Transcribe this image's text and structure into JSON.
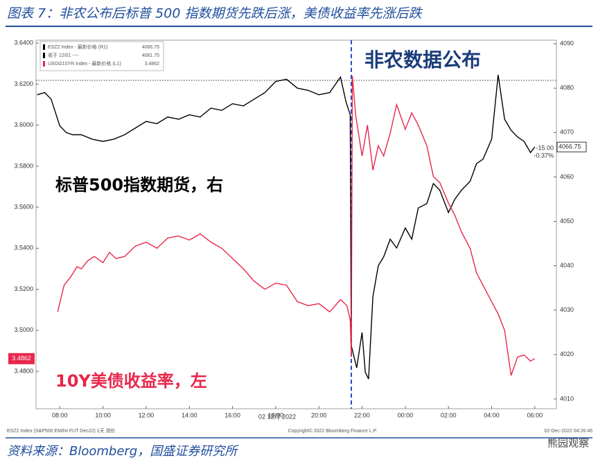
{
  "chart_data": {
    "type": "line",
    "title": "图表 7：非农公布后标普 500 指数期货先跌后涨，美债收益率先涨后跌",
    "source": "资料来源：Bloomberg，国盛证券研究所",
    "watermark": "熊园观察",
    "date_label": "02 12月 2022",
    "footer_left": "ESZ2 Index (S&P500 EMINI FUT Dec22) 1天 测价",
    "footer_center": "Copyright© 2022 Bloomberg Finance L.P.",
    "footer_right": "02-Dec-2022 04:26:46",
    "event": {
      "label": "非农数据公布",
      "x": 21.5
    },
    "prior_close": {
      "label": "收于 12/01 ----",
      "value": 4081.75
    },
    "change": {
      "value": -15,
      "label": "-15.00"
    },
    "change_pct": {
      "value": -0.37,
      "label": "-0.37%"
    },
    "xlim": [
      6.9,
      31.0
    ],
    "xticks": [
      {
        "value": 8,
        "label": "08:00"
      },
      {
        "value": 10,
        "label": "10:00"
      },
      {
        "value": 12,
        "label": "12:00"
      },
      {
        "value": 14,
        "label": "14:00"
      },
      {
        "value": 16,
        "label": "16:00"
      },
      {
        "value": 18,
        "label": "18:00"
      },
      {
        "value": 20,
        "label": "20:00"
      },
      {
        "value": 22,
        "label": "22:00"
      },
      {
        "value": 24,
        "label": "00:00"
      },
      {
        "value": 26,
        "label": "02:00"
      },
      {
        "value": 28,
        "label": "04:00"
      },
      {
        "value": 30,
        "label": "06:00"
      }
    ],
    "ylim": [
      3.4618,
      3.6414
    ],
    "yticks": [
      {
        "value": 3.48,
        "label": "3.4800"
      },
      {
        "value": 3.5,
        "label": "3.5000"
      },
      {
        "value": 3.52,
        "label": "3.5200"
      },
      {
        "value": 3.54,
        "label": "3.5400"
      },
      {
        "value": 3.56,
        "label": "3.5600"
      },
      {
        "value": 3.58,
        "label": "3.5800"
      },
      {
        "value": 3.6,
        "label": "3.6000"
      },
      {
        "value": 3.62,
        "label": "3.6200"
      },
      {
        "value": 3.64,
        "label": "3.6400"
      }
    ],
    "y2lim": [
      4007.8,
      4090.8
    ],
    "y2ticks": [
      4010,
      4020,
      4030,
      4040,
      4050,
      4060,
      4070,
      4080,
      4090
    ],
    "series": [
      {
        "name": "ESZ2 Index - 最新价格 (R1)",
        "callout": "标普500指数期货，右",
        "color": "#000000",
        "axis": "y2",
        "x": [
          6.95,
          7.3,
          7.6,
          8.0,
          8.3,
          8.6,
          9.0,
          9.5,
          10.0,
          10.5,
          11.0,
          11.5,
          12.0,
          12.5,
          13.0,
          13.5,
          14.0,
          14.5,
          15.0,
          15.5,
          16.0,
          16.5,
          17.0,
          17.5,
          18.0,
          18.5,
          19.0,
          19.5,
          20.0,
          20.5,
          21.0,
          21.25,
          21.45,
          21.5,
          21.6,
          21.75,
          22.0,
          22.15,
          22.3,
          22.5,
          22.75,
          23.0,
          23.3,
          23.6,
          24.0,
          24.3,
          24.6,
          25.0,
          25.3,
          25.6,
          26.0,
          26.3,
          26.6,
          27.0,
          27.3,
          27.6,
          28.0,
          28.3,
          28.6,
          28.9,
          29.2,
          29.5,
          29.8,
          30.0
        ],
        "values": [
          4078.5,
          4079.0,
          4077.5,
          4071.5,
          4070.0,
          4069.5,
          4069.5,
          4068.5,
          4068.0,
          4068.5,
          4069.5,
          4071.0,
          4072.5,
          4072.0,
          4073.5,
          4073.0,
          4074.0,
          4073.5,
          4075.5,
          4075.0,
          4076.5,
          4076.0,
          4077.5,
          4079.0,
          4081.5,
          4082.0,
          4080.0,
          4079.5,
          4078.5,
          4079.0,
          4082.5,
          4077.0,
          4074.0,
          4022.0,
          4020.0,
          4017.0,
          4025.0,
          4016.0,
          4014.5,
          4033.0,
          4040.0,
          4042.0,
          4046.0,
          4044.0,
          4048.5,
          4046.0,
          4053.0,
          4054.0,
          4058.5,
          4057.0,
          4052.0,
          4055.0,
          4057.0,
          4059.0,
          4063.0,
          4064.0,
          4068.5,
          4083.0,
          4073.0,
          4070.5,
          4069.0,
          4068.0,
          4065.5,
          4066.75
        ]
      },
      {
        "name": "USGG10YR Index - 最新价格 (L1)",
        "callout": "10Y美债收益率，左",
        "color": "#e8264a",
        "x": [
          7.9,
          8.2,
          8.5,
          8.8,
          9.0,
          9.3,
          9.6,
          10.0,
          10.3,
          10.6,
          11.0,
          11.5,
          12.0,
          12.5,
          13.0,
          13.5,
          14.0,
          14.5,
          15.0,
          15.5,
          16.0,
          16.5,
          17.0,
          17.5,
          18.0,
          18.5,
          19.0,
          19.5,
          20.0,
          20.5,
          21.0,
          21.3,
          21.45,
          21.5,
          21.55,
          21.7,
          22.0,
          22.25,
          22.5,
          22.75,
          23.0,
          23.3,
          23.6,
          24.0,
          24.3,
          24.6,
          25.0,
          25.3,
          25.6,
          26.0,
          26.3,
          26.6,
          27.0,
          27.3,
          27.6,
          28.0,
          28.3,
          28.6,
          28.9,
          29.2,
          29.5,
          29.8,
          30.0
        ],
        "values": [
          3.509,
          3.522,
          3.526,
          3.531,
          3.53,
          3.534,
          3.536,
          3.533,
          3.538,
          3.535,
          3.536,
          3.541,
          3.543,
          3.54,
          3.545,
          3.546,
          3.544,
          3.547,
          3.543,
          3.54,
          3.535,
          3.53,
          3.524,
          3.52,
          3.523,
          3.522,
          3.514,
          3.512,
          3.513,
          3.509,
          3.515,
          3.512,
          3.505,
          3.487,
          3.624,
          3.605,
          3.585,
          3.6,
          3.578,
          3.59,
          3.585,
          3.596,
          3.61,
          3.598,
          3.606,
          3.6,
          3.59,
          3.575,
          3.572,
          3.562,
          3.556,
          3.548,
          3.54,
          3.528,
          3.522,
          3.514,
          3.508,
          3.5,
          3.478,
          3.487,
          3.488,
          3.485,
          3.4862
        ]
      }
    ]
  }
}
